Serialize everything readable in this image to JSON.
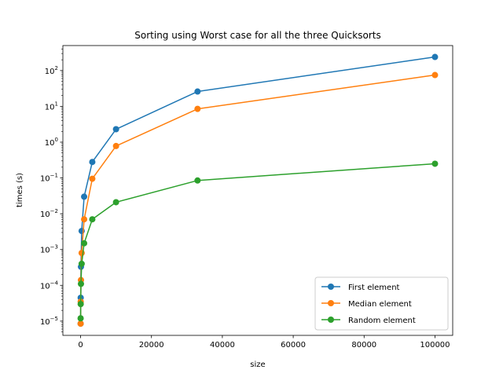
{
  "chart_data": {
    "type": "line",
    "title": "Sorting using Worst case for all the three Quicksorts",
    "xlabel": "size",
    "ylabel": "times (s)",
    "yscale": "log",
    "xlim": [
      -5000,
      105000
    ],
    "ylim": [
      4e-06,
      500
    ],
    "grid": false,
    "legend_position": "lower right",
    "x_ticks": [
      {
        "value": 0,
        "label": "0"
      },
      {
        "value": 20000,
        "label": "20000"
      },
      {
        "value": 40000,
        "label": "40000"
      },
      {
        "value": 60000,
        "label": "60000"
      },
      {
        "value": 80000,
        "label": "80000"
      },
      {
        "value": 100000,
        "label": "100000"
      }
    ],
    "y_ticks": [
      {
        "value": 1e-05,
        "base": "10",
        "exp": "−5"
      },
      {
        "value": 0.0001,
        "base": "10",
        "exp": "−4"
      },
      {
        "value": 0.001,
        "base": "10",
        "exp": "−3"
      },
      {
        "value": 0.01,
        "base": "10",
        "exp": "−2"
      },
      {
        "value": 0.1,
        "base": "10",
        "exp": "−1"
      },
      {
        "value": 1.0,
        "base": "10",
        "exp": "0"
      },
      {
        "value": 10.0,
        "base": "10",
        "exp": "1"
      },
      {
        "value": 100.0,
        "base": "10",
        "exp": "2"
      }
    ],
    "x": [
      10,
      30,
      100,
      300,
      1000,
      3300,
      10000,
      33000,
      100000
    ],
    "series": [
      {
        "name": "First element",
        "color": "#1f77b4",
        "values": [
          8.5e-06,
          4.5e-05,
          0.00033,
          0.0033,
          0.03,
          0.28,
          2.3,
          26,
          240
        ]
      },
      {
        "name": "Median element",
        "color": "#ff7f0e",
        "values": [
          8.5e-06,
          3.5e-05,
          0.00014,
          0.0008,
          0.007,
          0.095,
          0.78,
          8.5,
          75
        ]
      },
      {
        "name": "Random element",
        "color": "#2ca02c",
        "values": [
          1.2e-05,
          3e-05,
          0.00011,
          0.0004,
          0.0015,
          0.007,
          0.021,
          0.085,
          0.25
        ]
      }
    ]
  }
}
